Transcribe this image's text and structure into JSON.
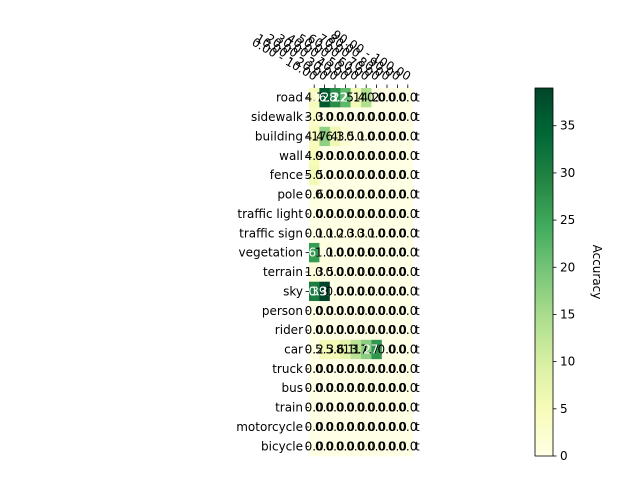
{
  "chart_data": {
    "type": "heatmap",
    "title": "",
    "xlabel": "",
    "ylabel": "",
    "x_categories": [
      "0.00 - 10.00",
      "10.00 - 20.00",
      "20.00 - 30.00",
      "30.00 - 40.00",
      "40.00 - 50.00",
      "50.00 - 60.00",
      "60.00 - 70.00",
      "70.00 - 80.00",
      "80.00 - 90.00",
      "90.00 - 100.00"
    ],
    "y_categories": [
      "road",
      "sidewalk",
      "building",
      "wall",
      "fence",
      "pole",
      "traffic light",
      "traffic sign",
      "vegetation",
      "terrain",
      "sky",
      "person",
      "rider",
      "car",
      "truck",
      "bus",
      "train",
      "motorcycle",
      "bicycle"
    ],
    "values": [
      [
        4.7,
        36.3,
        28.2,
        22.0,
        5.4,
        14.2,
        0.0,
        0.0,
        0.0,
        0.0
      ],
      [
        3.3,
        0.0,
        0.0,
        0.0,
        0.0,
        0.0,
        0.0,
        0.0,
        0.0,
        0.0
      ],
      [
        4.4,
        17.4,
        6.3,
        1.5,
        0.1,
        0.0,
        0.0,
        0.0,
        0.0,
        0.0
      ],
      [
        4.9,
        0.0,
        0.0,
        0.0,
        0.0,
        0.0,
        0.0,
        0.0,
        0.0,
        0.0
      ],
      [
        5.5,
        0.0,
        0.0,
        0.0,
        0.0,
        0.0,
        0.0,
        0.0,
        0.0,
        0.0
      ],
      [
        0.6,
        0.0,
        0.0,
        0.0,
        0.0,
        0.0,
        0.0,
        0.0,
        0.0,
        0.0
      ],
      [
        0.0,
        0.0,
        0.0,
        0.0,
        0.0,
        0.0,
        0.0,
        0.0,
        0.0,
        0.0
      ],
      [
        0.1,
        0.1,
        0.2,
        0.3,
        0.3,
        0.1,
        0.0,
        0.0,
        0.0,
        0.0
      ],
      [
        26.3,
        1.1,
        0.0,
        0.0,
        0.0,
        0.0,
        0.0,
        0.0,
        0.0,
        0.0
      ],
      [
        1.3,
        0.5,
        0.0,
        0.0,
        0.0,
        0.0,
        0.0,
        0.0,
        0.0,
        0.0
      ],
      [
        30.3,
        39.0,
        0.0,
        0.0,
        0.0,
        0.0,
        0.0,
        0.0,
        0.0,
        0.0
      ],
      [
        0.0,
        0.0,
        0.0,
        0.0,
        0.0,
        0.0,
        0.0,
        0.0,
        0.0,
        0.0
      ],
      [
        0.0,
        0.0,
        0.0,
        0.0,
        0.0,
        0.0,
        0.0,
        0.0,
        0.0,
        0.0
      ],
      [
        0.2,
        5.3,
        5.6,
        8.1,
        13.1,
        17.7,
        27.0,
        0.0,
        0.0,
        0.0
      ],
      [
        0.0,
        0.0,
        0.0,
        0.0,
        0.0,
        0.0,
        0.0,
        0.0,
        0.0,
        0.0
      ],
      [
        0.0,
        0.0,
        0.0,
        0.0,
        0.0,
        0.0,
        0.0,
        0.0,
        0.0,
        0.0
      ],
      [
        0.0,
        0.0,
        0.0,
        0.0,
        0.0,
        0.0,
        0.0,
        0.0,
        0.0,
        0.0
      ],
      [
        0.0,
        0.0,
        0.0,
        0.0,
        0.0,
        0.0,
        0.0,
        0.0,
        0.0,
        0.0
      ],
      [
        0.0,
        0.0,
        0.0,
        0.0,
        0.0,
        0.0,
        0.0,
        0.0,
        0.0,
        0.0
      ]
    ],
    "trailing_label": "t",
    "colorbar": {
      "label": "Accuracy",
      "range": [
        0,
        39
      ],
      "ticks": [
        0,
        5,
        10,
        15,
        20,
        25,
        30,
        35
      ],
      "colormap": "YlGn"
    },
    "grid": false
  }
}
